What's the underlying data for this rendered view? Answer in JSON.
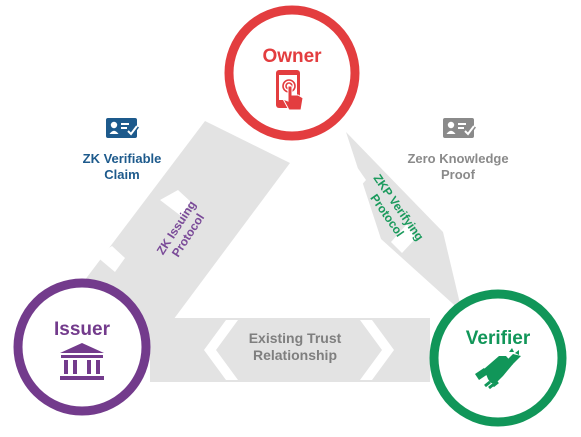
{
  "nodes": {
    "owner": {
      "label": "Owner",
      "color": "#e33d3f",
      "icon": "phone-touch-icon"
    },
    "issuer": {
      "label": "Issuer",
      "color": "#733b8c",
      "icon": "bank-icon"
    },
    "verifier": {
      "label": "Verifier",
      "color": "#119659",
      "icon": "handshake-icon"
    }
  },
  "edges": {
    "issuing": {
      "line1": "ZK Issuing",
      "line2": "Protocol",
      "color": "#7a4a98"
    },
    "verifying": {
      "line1": "ZKP Verifying",
      "line2": "Protocol",
      "color": "#1a9a5c"
    },
    "trust": {
      "line1": "Existing Trust",
      "line2": "Relationship",
      "color": "#7f7f7f"
    }
  },
  "claims": {
    "zk_claim": {
      "line1": "ZK Verifiable",
      "line2": "Claim",
      "color": "#1d5a8c",
      "icon": "id-card-check-icon"
    },
    "zk_proof": {
      "line1": "Zero Knowledge",
      "line2": "Proof",
      "color": "#8a8a8a",
      "icon": "id-card-check-icon"
    }
  },
  "colors": {
    "band": "#e3e3e3",
    "chevron": "#ffffff"
  }
}
